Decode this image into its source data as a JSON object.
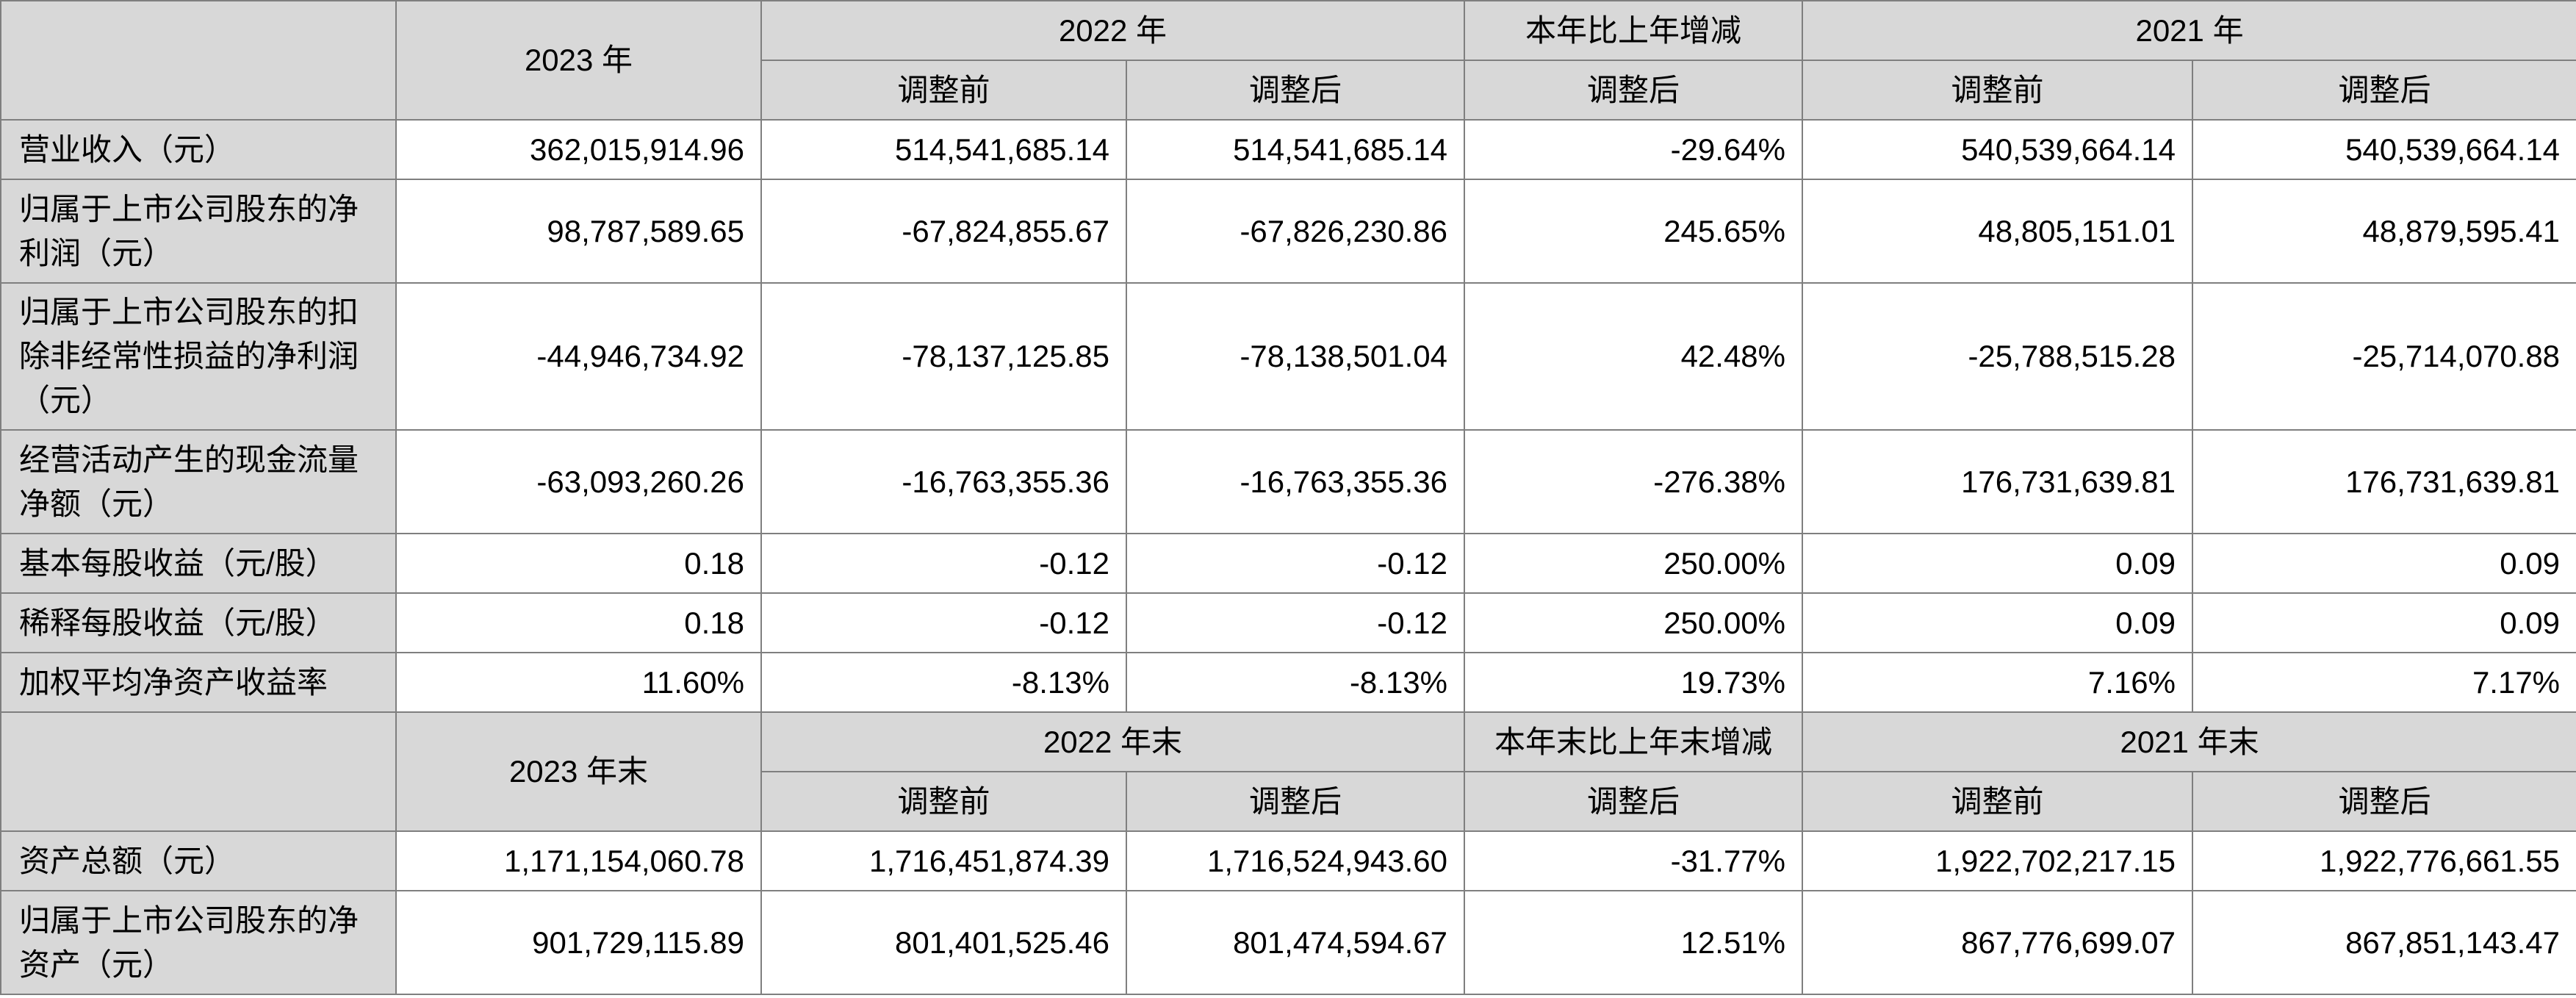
{
  "section1": {
    "col_2023": "2023 年",
    "col_2022": "2022 年",
    "col_change": "本年比上年增减",
    "col_2021": "2021 年",
    "sub_before": "调整前",
    "sub_after": "调整后",
    "rows": [
      {
        "label": "营业收入（元）",
        "v2023": "362,015,914.96",
        "v2022_before": "514,541,685.14",
        "v2022_after": "514,541,685.14",
        "change": "-29.64%",
        "v2021_before": "540,539,664.14",
        "v2021_after": "540,539,664.14"
      },
      {
        "label": "归属于上市公司股东的净利润（元）",
        "v2023": "98,787,589.65",
        "v2022_before": "-67,824,855.67",
        "v2022_after": "-67,826,230.86",
        "change": "245.65%",
        "v2021_before": "48,805,151.01",
        "v2021_after": "48,879,595.41"
      },
      {
        "label": "归属于上市公司股东的扣除非经常性损益的净利润（元）",
        "v2023": "-44,946,734.92",
        "v2022_before": "-78,137,125.85",
        "v2022_after": "-78,138,501.04",
        "change": "42.48%",
        "v2021_before": "-25,788,515.28",
        "v2021_after": "-25,714,070.88"
      },
      {
        "label": "经营活动产生的现金流量净额（元）",
        "v2023": "-63,093,260.26",
        "v2022_before": "-16,763,355.36",
        "v2022_after": "-16,763,355.36",
        "change": "-276.38%",
        "v2021_before": "176,731,639.81",
        "v2021_after": "176,731,639.81"
      },
      {
        "label": "基本每股收益（元/股）",
        "v2023": "0.18",
        "v2022_before": "-0.12",
        "v2022_after": "-0.12",
        "change": "250.00%",
        "v2021_before": "0.09",
        "v2021_after": "0.09"
      },
      {
        "label": "稀释每股收益（元/股）",
        "v2023": "0.18",
        "v2022_before": "-0.12",
        "v2022_after": "-0.12",
        "change": "250.00%",
        "v2021_before": "0.09",
        "v2021_after": "0.09"
      },
      {
        "label": "加权平均净资产收益率",
        "v2023": "11.60%",
        "v2022_before": "-8.13%",
        "v2022_after": "-8.13%",
        "change": "19.73%",
        "v2021_before": "7.16%",
        "v2021_after": "7.17%"
      }
    ]
  },
  "section2": {
    "col_2023": "2023 年末",
    "col_2022": "2022 年末",
    "col_change": "本年末比上年末增减",
    "col_2021": "2021 年末",
    "sub_before": "调整前",
    "sub_after": "调整后",
    "rows": [
      {
        "label": "资产总额（元）",
        "v2023": "1,171,154,060.78",
        "v2022_before": "1,716,451,874.39",
        "v2022_after": "1,716,524,943.60",
        "change": "-31.77%",
        "v2021_before": "1,922,702,217.15",
        "v2021_after": "1,922,776,661.55"
      },
      {
        "label": "归属于上市公司股东的净资产（元）",
        "v2023": "901,729,115.89",
        "v2022_before": "801,401,525.46",
        "v2022_after": "801,474,594.67",
        "change": "12.51%",
        "v2021_before": "867,776,699.07",
        "v2021_after": "867,851,143.47"
      }
    ]
  }
}
